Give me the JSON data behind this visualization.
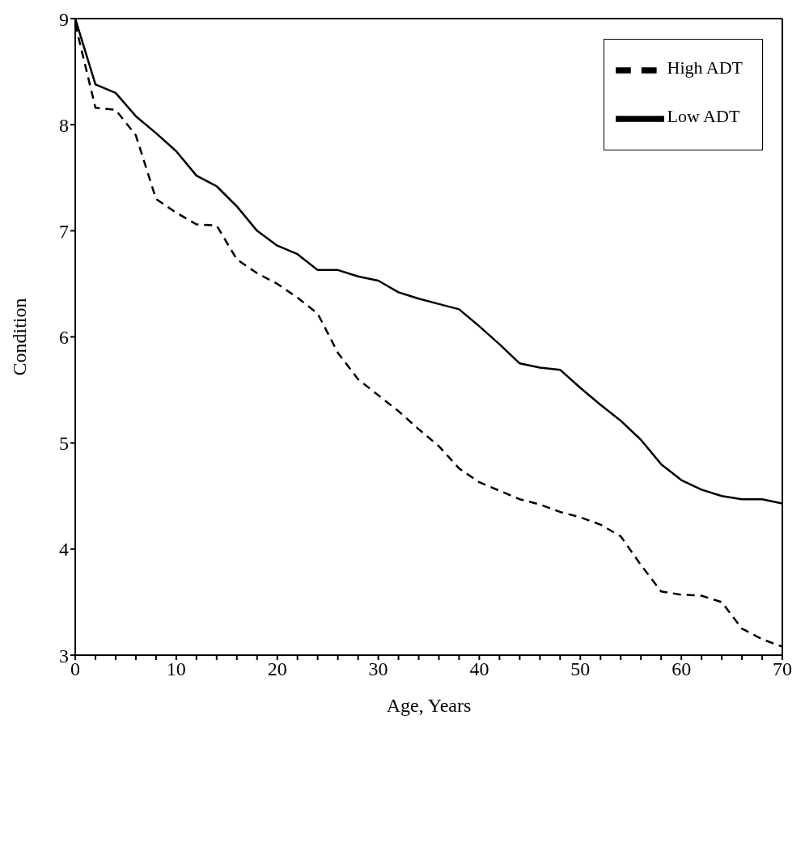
{
  "chart_data": {
    "type": "line",
    "xlabel": "Age, Years",
    "ylabel": "Condition",
    "x": [
      0,
      2,
      4,
      6,
      8,
      10,
      12,
      14,
      16,
      18,
      20,
      22,
      24,
      26,
      28,
      30,
      32,
      34,
      36,
      38,
      40,
      42,
      44,
      46,
      48,
      50,
      52,
      54,
      56,
      58,
      60,
      62,
      64,
      66,
      68,
      70
    ],
    "series": [
      {
        "name": "Low ADT",
        "color": "#000000",
        "line_style": "solid",
        "values": [
          9.0,
          8.38,
          8.3,
          8.08,
          7.92,
          7.75,
          7.52,
          7.42,
          7.23,
          7.0,
          6.86,
          6.78,
          6.63,
          6.63,
          6.57,
          6.53,
          6.42,
          6.36,
          6.31,
          6.26,
          6.1,
          5.93,
          5.75,
          5.71,
          5.69,
          5.52,
          5.36,
          5.21,
          5.03,
          4.8,
          4.65,
          4.56,
          4.5,
          4.47,
          4.47,
          4.43
        ]
      },
      {
        "name": "High ADT",
        "color": "#000000",
        "line_style": "dashed",
        "values": [
          8.95,
          8.16,
          8.14,
          7.9,
          7.3,
          7.17,
          7.06,
          7.05,
          6.73,
          6.6,
          6.5,
          6.37,
          6.22,
          5.85,
          5.6,
          5.45,
          5.3,
          5.13,
          4.97,
          4.76,
          4.63,
          4.55,
          4.47,
          4.42,
          4.35,
          4.3,
          4.23,
          4.12,
          3.85,
          3.6,
          3.57,
          3.56,
          3.5,
          3.25,
          3.15,
          3.08
        ]
      }
    ],
    "xlim": [
      0,
      70
    ],
    "xticks": [
      0,
      {
        "value": 2,
        "label": null
      },
      {
        "value": 4,
        "label": null
      },
      {
        "value": 6,
        "label": null
      },
      {
        "value": 8,
        "label": null
      },
      10,
      {
        "value": 12,
        "label": null
      },
      {
        "value": 14,
        "label": null
      },
      {
        "value": 16,
        "label": null
      },
      {
        "value": 18,
        "label": null
      },
      20,
      {
        "value": 22,
        "label": null
      },
      {
        "value": 24,
        "label": null
      },
      {
        "value": 26,
        "label": null
      },
      {
        "value": 28,
        "label": null
      },
      30,
      {
        "value": 32,
        "label": null
      },
      {
        "value": 34,
        "label": null
      },
      {
        "value": 36,
        "label": null
      },
      {
        "value": 38,
        "label": null
      },
      40,
      {
        "value": 42,
        "label": null
      },
      {
        "value": 44,
        "label": null
      },
      {
        "value": 46,
        "label": null
      },
      {
        "value": 48,
        "label": null
      },
      50,
      {
        "value": 52,
        "label": null
      },
      {
        "value": 54,
        "label": null
      },
      {
        "value": 56,
        "label": null
      },
      {
        "value": 58,
        "label": null
      },
      60,
      {
        "value": 62,
        "label": null
      },
      {
        "value": 64,
        "label": null
      },
      {
        "value": 66,
        "label": null
      },
      {
        "value": 68,
        "label": null
      },
      70
    ],
    "ylim": [
      3,
      9
    ],
    "yticks": [
      3,
      4,
      5,
      6,
      7,
      8,
      9
    ],
    "legend": "top right",
    "marker": "none"
  }
}
